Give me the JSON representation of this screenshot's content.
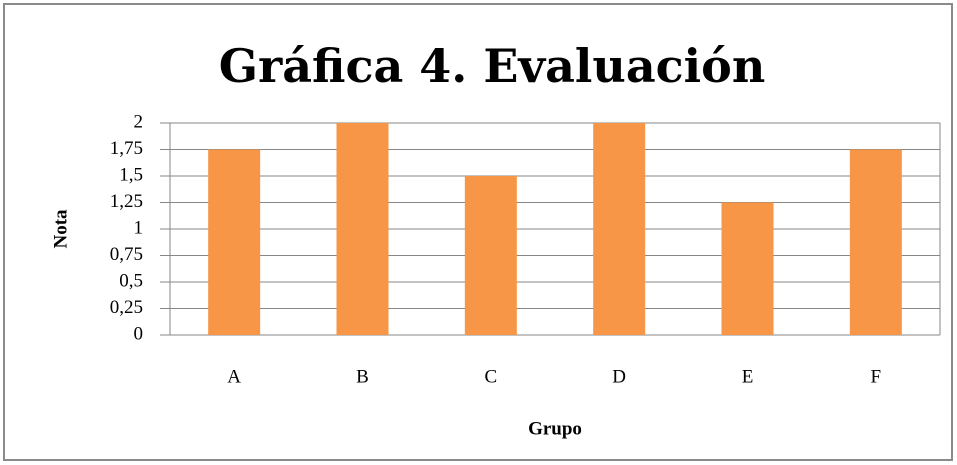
{
  "chart_data": {
    "type": "bar",
    "title": "Gráfica 4. Evaluación",
    "x_label": "Grupo",
    "y_label": "Nota",
    "categories": [
      "A",
      "B",
      "C",
      "D",
      "E",
      "F"
    ],
    "values": [
      1.75,
      2,
      1.5,
      2,
      1.25,
      1.75
    ],
    "color": "#f79646",
    "ylim": [
      0,
      2
    ],
    "yticks": [
      0,
      {
        "value": 0.25,
        "label": "0,25"
      },
      {
        "value": 0.5,
        "label": "0,5"
      },
      {
        "value": 0.75,
        "label": "0,75"
      },
      1,
      {
        "value": 1.25,
        "label": "1,25"
      },
      {
        "value": 1.5,
        "label": "1,5"
      },
      {
        "value": 1.75,
        "label": "1,75"
      },
      2
    ],
    "grid": true
  }
}
